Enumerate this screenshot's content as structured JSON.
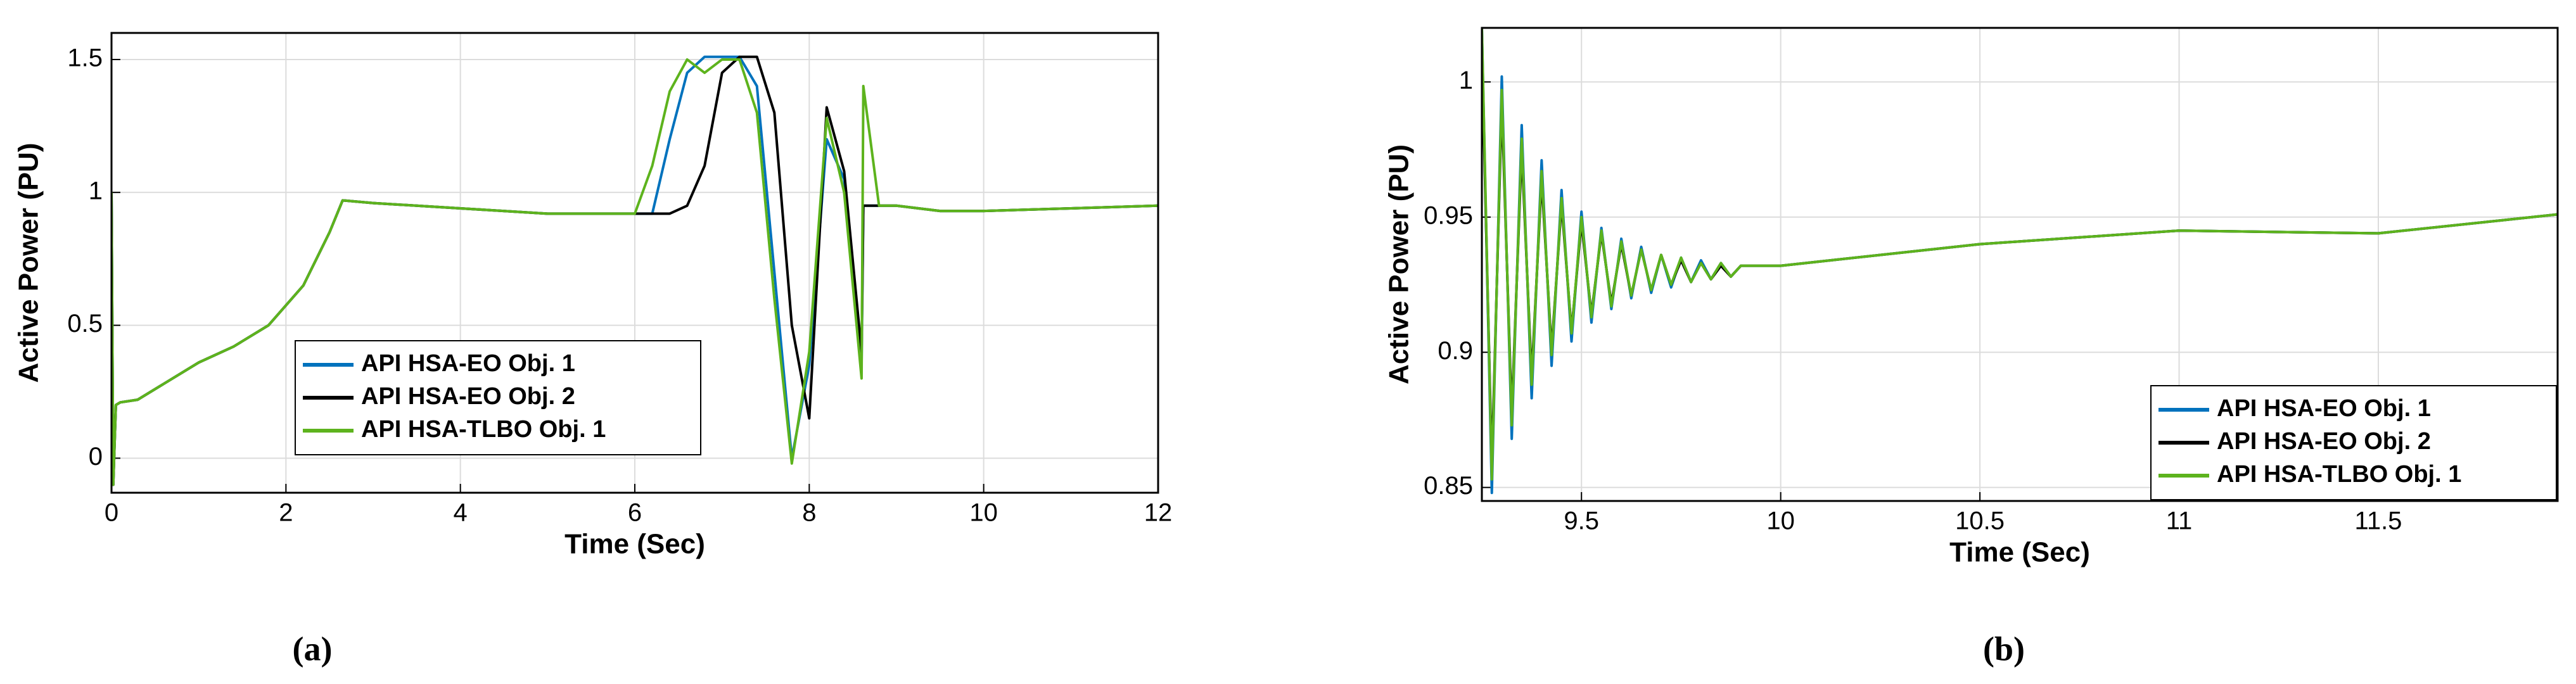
{
  "chart_data": [
    {
      "type": "line",
      "caption": "(a)",
      "xlabel": "Time (Sec)",
      "ylabel": "Active Power (PU)",
      "xlim": [
        0,
        12
      ],
      "ylim": [
        -0.13,
        1.6
      ],
      "xticks": [
        0,
        2,
        4,
        6,
        8,
        10,
        12
      ],
      "yticks": [
        0,
        0.5,
        1,
        1.5
      ],
      "grid": true,
      "legend": "lower left",
      "x": [
        0,
        0.02,
        0.05,
        0.1,
        0.3,
        0.6,
        1.0,
        1.4,
        1.8,
        2.2,
        2.5,
        2.65,
        3,
        4,
        5,
        6,
        6.2,
        6.4,
        6.6,
        6.8,
        7.0,
        7.2,
        7.4,
        7.6,
        7.8,
        8.0,
        8.2,
        8.4,
        8.6,
        8.62,
        8.8,
        9.0,
        9.5,
        10,
        11,
        12
      ],
      "series": [
        {
          "name": "API HSA-EO Obj. 1",
          "color": "#0072bd",
          "values": [
            1.0,
            -0.1,
            0.2,
            0.21,
            0.22,
            0.28,
            0.36,
            0.42,
            0.5,
            0.65,
            0.85,
            0.97,
            0.96,
            0.94,
            0.92,
            0.92,
            0.92,
            1.2,
            1.45,
            1.51,
            1.51,
            1.51,
            1.4,
            0.7,
            0.0,
            0.35,
            1.2,
            1.05,
            0.35,
            0.95,
            0.95,
            0.95,
            0.93,
            0.93,
            0.94,
            0.95
          ]
        },
        {
          "name": "API HSA-EO Obj. 2",
          "color": "#000000",
          "values": [
            1.0,
            -0.1,
            0.2,
            0.21,
            0.22,
            0.28,
            0.36,
            0.42,
            0.5,
            0.65,
            0.85,
            0.97,
            0.96,
            0.94,
            0.92,
            0.92,
            0.92,
            0.92,
            0.95,
            1.1,
            1.45,
            1.51,
            1.51,
            1.3,
            0.5,
            0.15,
            1.32,
            1.08,
            0.4,
            0.95,
            0.95,
            0.95,
            0.93,
            0.93,
            0.94,
            0.95
          ]
        },
        {
          "name": "API HSA-TLBO Obj. 1",
          "color": "#5db31d",
          "values": [
            1.0,
            -0.1,
            0.2,
            0.21,
            0.22,
            0.28,
            0.36,
            0.42,
            0.5,
            0.65,
            0.85,
            0.97,
            0.96,
            0.94,
            0.92,
            0.92,
            1.1,
            1.38,
            1.5,
            1.45,
            1.5,
            1.5,
            1.3,
            0.6,
            -0.02,
            0.4,
            1.28,
            1.0,
            0.3,
            1.4,
            0.95,
            0.95,
            0.93,
            0.93,
            0.94,
            0.95
          ]
        }
      ]
    },
    {
      "type": "line",
      "caption": "(b)",
      "xlabel": "Time (Sec)",
      "ylabel": "Active Power (PU)",
      "xlim": [
        9.25,
        11.95
      ],
      "ylim": [
        0.845,
        1.02
      ],
      "xticks": [
        9.5,
        10,
        10.5,
        11,
        11.5
      ],
      "yticks": [
        0.85,
        0.9,
        0.95,
        1
      ],
      "grid": true,
      "legend": "lower right",
      "x": [
        9.25,
        9.275,
        9.3,
        9.325,
        9.35,
        9.375,
        9.4,
        9.425,
        9.45,
        9.475,
        9.5,
        9.525,
        9.55,
        9.575,
        9.6,
        9.625,
        9.65,
        9.675,
        9.7,
        9.725,
        9.75,
        9.775,
        9.8,
        9.825,
        9.85,
        9.875,
        9.9,
        10,
        10.5,
        11,
        11.5,
        11.95
      ],
      "series": [
        {
          "name": "API HSA-EO Obj. 1",
          "color": "#0072bd",
          "values": [
            1.02,
            0.848,
            1.002,
            0.868,
            0.984,
            0.883,
            0.971,
            0.895,
            0.96,
            0.904,
            0.952,
            0.911,
            0.946,
            0.916,
            0.942,
            0.92,
            0.939,
            0.922,
            0.936,
            0.924,
            0.935,
            0.926,
            0.934,
            0.927,
            0.933,
            0.928,
            0.932,
            0.932,
            0.94,
            0.945,
            0.944,
            0.951
          ]
        },
        {
          "name": "API HSA-EO Obj. 2",
          "color": "#000000",
          "values": [
            1.012,
            0.858,
            0.992,
            0.877,
            0.975,
            0.891,
            0.964,
            0.901,
            0.955,
            0.908,
            0.948,
            0.914,
            0.944,
            0.918,
            0.94,
            0.921,
            0.938,
            0.923,
            0.936,
            0.925,
            0.934,
            0.926,
            0.933,
            0.927,
            0.932,
            0.928,
            0.932,
            0.932,
            0.94,
            0.945,
            0.944,
            0.951
          ]
        },
        {
          "name": "API HSA-TLBO Obj. 1",
          "color": "#5db31d",
          "values": [
            1.02,
            0.853,
            0.997,
            0.873,
            0.979,
            0.888,
            0.967,
            0.899,
            0.957,
            0.907,
            0.95,
            0.913,
            0.945,
            0.917,
            0.941,
            0.921,
            0.938,
            0.923,
            0.936,
            0.925,
            0.935,
            0.926,
            0.933,
            0.927,
            0.933,
            0.928,
            0.932,
            0.932,
            0.94,
            0.945,
            0.944,
            0.951
          ]
        }
      ]
    }
  ]
}
